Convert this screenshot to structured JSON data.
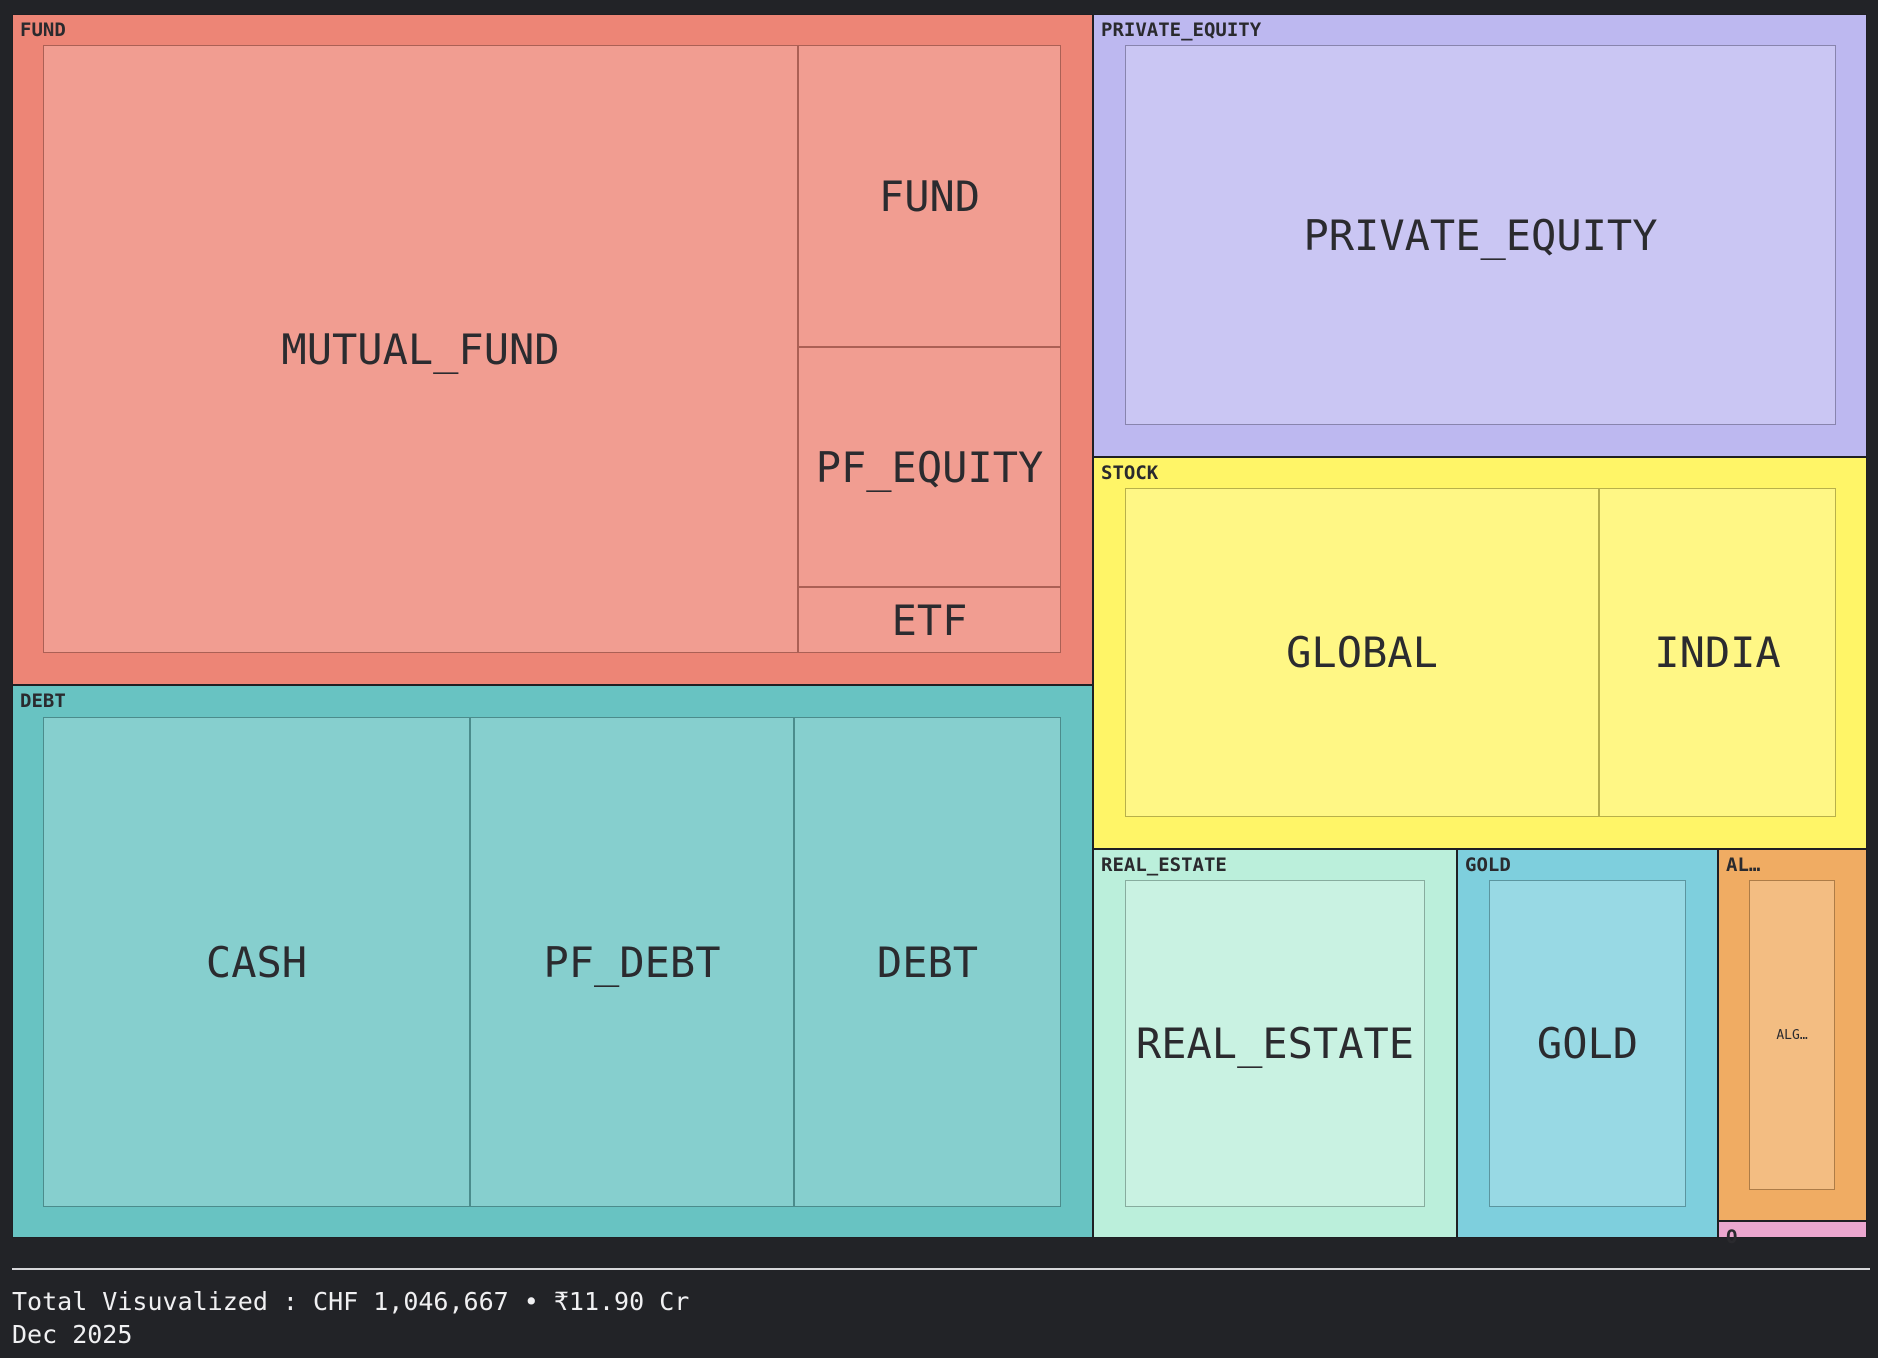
{
  "chart_data": {
    "type": "treemap",
    "colors": {
      "FUND": "#ed8576",
      "PRIVATE_EQUITY": "#bdb8f0",
      "STOCK": "#fff567",
      "DEBT": "#68c3c2",
      "REAL_ESTATE": "#bbefdb",
      "GOLD": "#7ecfdd",
      "AL...": "#f0ac63",
      "O": "#eba7cf"
    },
    "groups": [
      {
        "name": "FUND",
        "label": "FUND",
        "children": [
          {
            "name": "MUTUAL_FUND",
            "label": "MUTUAL_FUND"
          },
          {
            "name": "FUND",
            "label": "FUND"
          },
          {
            "name": "PF_EQUITY",
            "label": "PF_EQUITY"
          },
          {
            "name": "ETF",
            "label": "ETF"
          }
        ]
      },
      {
        "name": "DEBT",
        "label": "DEBT",
        "children": [
          {
            "name": "CASH",
            "label": "CASH"
          },
          {
            "name": "PF_DEBT",
            "label": "PF_DEBT"
          },
          {
            "name": "DEBT",
            "label": "DEBT"
          }
        ]
      },
      {
        "name": "PRIVATE_EQUITY",
        "label": "PRIVATE_EQUITY",
        "children": [
          {
            "name": "PRIVATE_EQUITY",
            "label": "PRIVATE_EQUITY"
          }
        ]
      },
      {
        "name": "STOCK",
        "label": "STOCK",
        "children": [
          {
            "name": "GLOBAL",
            "label": "GLOBAL"
          },
          {
            "name": "INDIA",
            "label": "INDIA"
          }
        ]
      },
      {
        "name": "REAL_ESTATE",
        "label": "REAL_ESTATE",
        "children": [
          {
            "name": "REAL_ESTATE",
            "label": "REAL_ESTATE"
          }
        ]
      },
      {
        "name": "GOLD",
        "label": "GOLD",
        "children": [
          {
            "name": "GOLD",
            "label": "GOLD"
          }
        ]
      },
      {
        "name": "AL...",
        "label": "AL…",
        "children": [
          {
            "name": "ALG...",
            "label": "ALG…"
          }
        ]
      },
      {
        "name": "O",
        "label": "O",
        "children": []
      }
    ]
  },
  "footer": {
    "total": "Total Visuvalized : CHF 1,046,667 • ₹11.90 Cr",
    "period": "Dec 2025"
  }
}
